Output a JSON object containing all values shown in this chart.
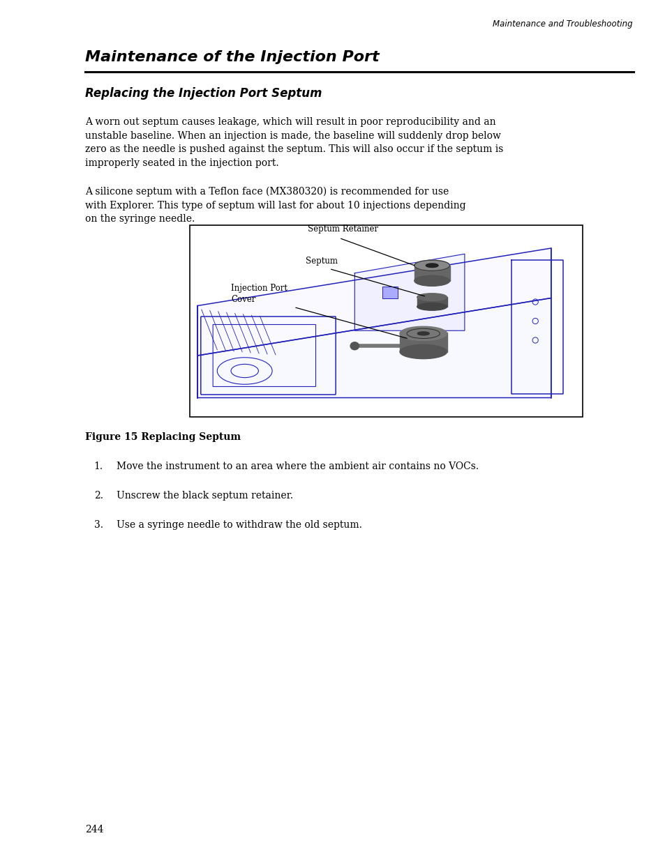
{
  "page_width": 9.54,
  "page_height": 12.35,
  "bg_color": "#ffffff",
  "header_text": "Maintenance and Troubleshooting",
  "main_title": "Maintenance of the Injection Port",
  "section_title": "Replacing the Injection Port Septum",
  "para1": "A worn out septum causes leakage, which will result in poor reproducibility and an\nunstable baseline. When an injection is made, the baseline will suddenly drop below\nzero as the needle is pushed against the septum. This will also occur if the septum is\nimproperly seated in the injection port.",
  "para2": "A silicone septum with a Teflon face (MX380320) is recommended for use\nwith Explorer. This type of septum will last for about 10 injections depending\non the syringe needle.",
  "figure_caption": "Figure 15 Replacing Septum",
  "list_items": [
    "Move the instrument to an area where the ambient air contains no VOCs.",
    "Unscrew the black septum retainer.",
    "Use a syringe needle to withdraw the old septum."
  ],
  "page_number": "244",
  "font_size_header": 8.5,
  "font_size_main_title": 16,
  "font_size_section_title": 12,
  "font_size_body": 10,
  "font_size_caption": 10,
  "font_size_page": 10,
  "text_color": "#000000",
  "diagram_color": "#2222bb",
  "gray_dark": "#555555",
  "gray_med": "#777777",
  "gray_light": "#aaaaaa"
}
